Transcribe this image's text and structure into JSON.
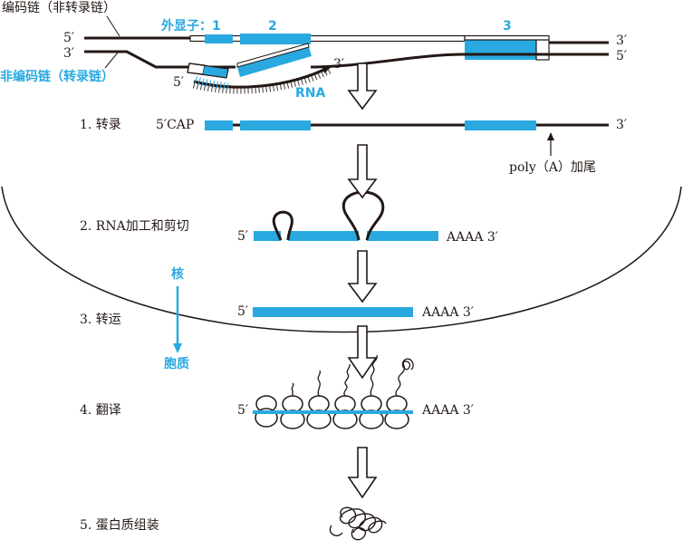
{
  "colors": {
    "exon": "#29a9e0",
    "line": "#231815",
    "arrow_white": "#ffffff"
  },
  "dna": {
    "coding_strand_label": "编码链（非转录链）",
    "template_strand_label": "非编码链（转录链）",
    "exons_label": "外显子：1",
    "exon2_label": "2",
    "exon3_label": "3",
    "top_left_5": "5′",
    "top_right_3": "3′",
    "bottom_left_3": "3′",
    "bottom_right_5": "5′",
    "rna_label": "RNA",
    "rna_3": "3′",
    "rna_5": "5′"
  },
  "steps": [
    {
      "label": "1. 转录"
    },
    {
      "label": "2. RNA加工和剪切"
    },
    {
      "label": "3. 转运"
    },
    {
      "label": "4. 翻译"
    },
    {
      "label": "5. 蛋白质组装"
    }
  ],
  "pre_mrna": {
    "left": "5′CAP",
    "right": "3′",
    "polya_label": "poly（A）加尾"
  },
  "splicing": {
    "left": "5′",
    "right": "AAAA 3′"
  },
  "mature": {
    "left": "5′",
    "right": "AAAA 3′"
  },
  "translation": {
    "left": "5′",
    "right": "AAAA 3′"
  },
  "nucleus": {
    "inside": "核",
    "outside": "胞质"
  }
}
